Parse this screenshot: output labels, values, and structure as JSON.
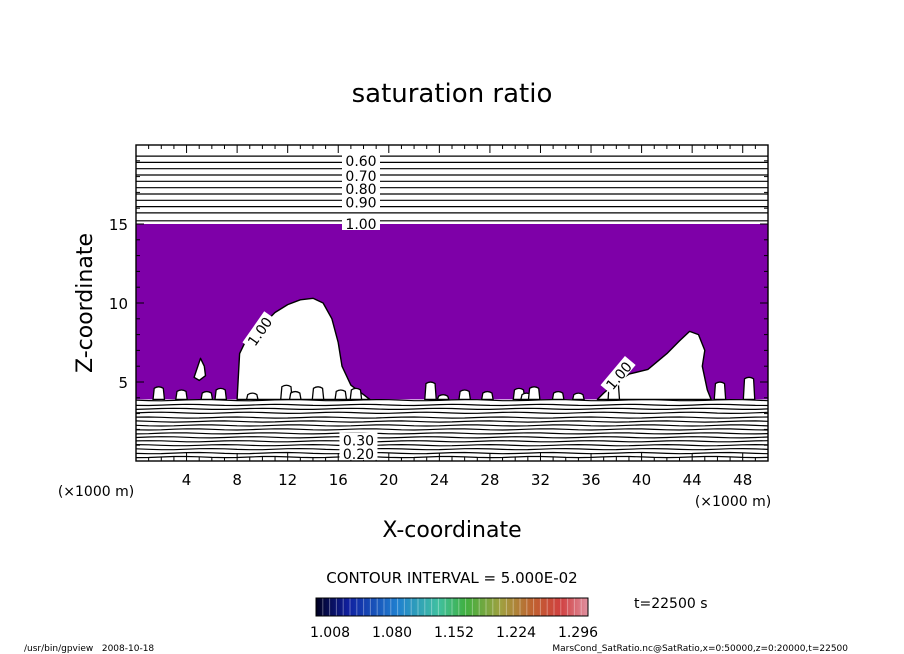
{
  "chart_data": {
    "type": "contour",
    "title": "saturation ratio",
    "xlabel": "X-coordinate",
    "ylabel": "Z-coordinate",
    "x_unit": "(×1000 m)",
    "y_unit": "(×1000 m)",
    "xlim": [
      0,
      50
    ],
    "ylim": [
      0,
      20
    ],
    "x_ticks": [
      4,
      8,
      12,
      16,
      20,
      24,
      28,
      32,
      36,
      40,
      44,
      48
    ],
    "y_ticks": [
      5,
      10,
      15
    ],
    "contour_interval_text": "CONTOUR INTERVAL = 5.000E-02",
    "upper_contour_labels": [
      "0.60",
      "0.70",
      "0.80",
      "0.90",
      "1.00"
    ],
    "lower_contour_labels": [
      "0.30",
      "0.20"
    ],
    "plume_labels": [
      "1.00",
      "1.00"
    ],
    "supersaturated_color": "#7e00a8",
    "colorbar_tick_labels": [
      "1.008",
      "1.080",
      "1.152",
      "1.224",
      "1.296"
    ],
    "time_label": "t=22500 s",
    "footer_left": "/usr/bin/gpview   2008-10-18",
    "footer_right": "MarsCond_SatRatio.nc@SatRatio,x=0:50000,z=0:20000,t=22500",
    "upper_contours_z": [
      19.3,
      18.9,
      18.5,
      18.1,
      17.7,
      17.3,
      16.9,
      16.5,
      16.1,
      15.7,
      15.2
    ],
    "lower_contours_z": [
      3.85,
      3.55,
      3.3,
      3.05,
      2.75,
      2.5,
      2.25,
      2.0,
      1.75,
      1.5,
      1.25,
      1.0,
      0.75,
      0.5,
      0.25
    ],
    "purple_region_z": [
      3.9,
      15.0
    ],
    "plume_1": [
      [
        8.0,
        3.9
      ],
      [
        8.2,
        6.8
      ],
      [
        8.8,
        7.8
      ],
      [
        10.0,
        8.6
      ],
      [
        11.0,
        9.4
      ],
      [
        12.0,
        9.9
      ],
      [
        13.0,
        10.2
      ],
      [
        14.0,
        10.3
      ],
      [
        14.8,
        10.0
      ],
      [
        15.5,
        9.0
      ],
      [
        16.0,
        7.5
      ],
      [
        16.3,
        6.0
      ],
      [
        17.0,
        4.8
      ],
      [
        18.0,
        4.2
      ],
      [
        18.5,
        3.9
      ]
    ],
    "plume_2": [
      [
        36.5,
        3.9
      ],
      [
        37.0,
        4.3
      ],
      [
        38.0,
        5.0
      ],
      [
        39.0,
        5.5
      ],
      [
        40.5,
        5.8
      ],
      [
        42.0,
        6.8
      ],
      [
        43.0,
        7.6
      ],
      [
        43.8,
        8.2
      ],
      [
        44.5,
        8.0
      ],
      [
        45.0,
        7.0
      ],
      [
        44.8,
        6.0
      ],
      [
        45.2,
        4.5
      ],
      [
        45.5,
        3.9
      ]
    ],
    "bubble": [
      [
        4.6,
        5.3
      ],
      [
        5.1,
        6.5
      ],
      [
        5.4,
        6.0
      ],
      [
        5.5,
        5.4
      ],
      [
        5.0,
        5.1
      ]
    ],
    "small_cells": [
      [
        1.8,
        4.6
      ],
      [
        3.6,
        4.4
      ],
      [
        5.6,
        4.3
      ],
      [
        6.7,
        4.5
      ],
      [
        9.2,
        4.2
      ],
      [
        11.9,
        4.7
      ],
      [
        12.6,
        4.3
      ],
      [
        14.4,
        4.6
      ],
      [
        16.2,
        4.4
      ],
      [
        17.4,
        4.5
      ],
      [
        23.3,
        4.9
      ],
      [
        24.3,
        4.1
      ],
      [
        26.0,
        4.4
      ],
      [
        27.8,
        4.3
      ],
      [
        30.3,
        4.5
      ],
      [
        30.9,
        4.2
      ],
      [
        31.5,
        4.6
      ],
      [
        33.4,
        4.3
      ],
      [
        35.0,
        4.2
      ],
      [
        37.8,
        4.9
      ],
      [
        46.2,
        4.9
      ],
      [
        48.5,
        5.2
      ]
    ]
  }
}
